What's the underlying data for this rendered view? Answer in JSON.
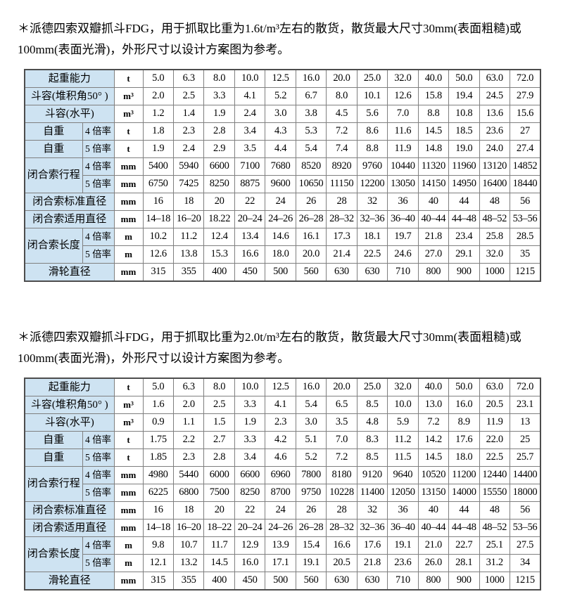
{
  "colors": {
    "header_cell_bg": "#cee3f2",
    "grid_border": "#7f7f7f",
    "outer_border": "#4d4d4d",
    "text": "#000000",
    "page_bg": "#ffffff"
  },
  "paragraphs": [
    "＊派德四索双瓣抓斗FDG，用于抓取比重为1.6t/m³左右的散货，散货最大尺寸30mm(表面粗糙)或100mm(表面光滑)，外形尺寸以设计方案图为参考。",
    "＊派德四索双瓣抓斗FDG，用于抓取比重为2.0t/m³左右的散货，散货最大尺寸30mm(表面粗糙)或100mm(表面光滑)，外形尺寸以设计方案图为参考。"
  ],
  "tables": [
    {
      "name": "spec-table-density-1.6",
      "rows": [
        {
          "label": "起重能力",
          "sub": null,
          "unit": "t",
          "values": [
            "5.0",
            "6.3",
            "8.0",
            "10.0",
            "12.5",
            "16.0",
            "20.0",
            "25.0",
            "32.0",
            "40.0",
            "50.0",
            "63.0",
            "72.0"
          ]
        },
        {
          "label": "斗容(堆积角50° )",
          "sub": null,
          "unit": "m³",
          "values": [
            "2.0",
            "2.5",
            "3.3",
            "4.1",
            "5.2",
            "6.7",
            "8.0",
            "10.1",
            "12.6",
            "15.8",
            "19.4",
            "24.5",
            "27.9"
          ]
        },
        {
          "label": "斗容(水平)",
          "sub": null,
          "unit": "m³",
          "values": [
            "1.2",
            "1.4",
            "1.9",
            "2.4",
            "3.0",
            "3.8",
            "4.5",
            "5.6",
            "7.0",
            "8.8",
            "10.8",
            "13.6",
            "15.6"
          ]
        },
        {
          "label": "自重",
          "sub": "4 倍率",
          "unit": "t",
          "values": [
            "1.8",
            "2.3",
            "2.8",
            "3.4",
            "4.3",
            "5.3",
            "7.2",
            "8.6",
            "11.6",
            "14.5",
            "18.5",
            "23.6",
            "27"
          ]
        },
        {
          "label": "自重",
          "sub": "5 倍率",
          "unit": "t",
          "values": [
            "1.9",
            "2.4",
            "2.9",
            "3.5",
            "4.4",
            "5.4",
            "7.4",
            "8.8",
            "11.9",
            "14.8",
            "19.0",
            "24.0",
            "27.4"
          ]
        },
        {
          "label": "闭合索行程",
          "labelRowspan": 2,
          "sub": "4 倍率",
          "unit": "mm",
          "values": [
            "5400",
            "5940",
            "6600",
            "7100",
            "7680",
            "8520",
            "8920",
            "9760",
            "10440",
            "11320",
            "11960",
            "13120",
            "14852"
          ]
        },
        {
          "label": null,
          "sub": "5 倍率",
          "unit": "mm",
          "values": [
            "6750",
            "7425",
            "8250",
            "8875",
            "9600",
            "10650",
            "11150",
            "12200",
            "13050",
            "14150",
            "14950",
            "16400",
            "18440"
          ]
        },
        {
          "label": "闭合索标准直径",
          "sub": null,
          "unit": "mm",
          "values": [
            "16",
            "18",
            "20",
            "22",
            "24",
            "26",
            "28",
            "32",
            "36",
            "40",
            "44",
            "48",
            "56"
          ]
        },
        {
          "label": "闭合索适用直径",
          "sub": null,
          "unit": "mm",
          "values": [
            "14–18",
            "16–20",
            "18.22",
            "20–24",
            "24–26",
            "26–28",
            "28–32",
            "32–36",
            "36–40",
            "40–44",
            "44–48",
            "48–52",
            "53–56"
          ]
        },
        {
          "label": "闭合索长度",
          "labelRowspan": 2,
          "sub": "4 倍率",
          "unit": "m",
          "values": [
            "10.2",
            "11.2",
            "12.4",
            "13.4",
            "14.6",
            "16.1",
            "17.3",
            "18.1",
            "19.7",
            "21.8",
            "23.4",
            "25.8",
            "28.5"
          ]
        },
        {
          "label": null,
          "sub": "5 倍率",
          "unit": "m",
          "values": [
            "12.6",
            "13.8",
            "15.3",
            "16.6",
            "18.0",
            "20.0",
            "21.4",
            "22.5",
            "24.6",
            "27.0",
            "29.1",
            "32.0",
            "35"
          ]
        },
        {
          "label": "滑轮直径",
          "sub": null,
          "unit": "mm",
          "values": [
            "315",
            "355",
            "400",
            "450",
            "500",
            "560",
            "630",
            "630",
            "710",
            "800",
            "900",
            "1000",
            "1215"
          ]
        }
      ]
    },
    {
      "name": "spec-table-density-2.0",
      "rows": [
        {
          "label": "起重能力",
          "sub": null,
          "unit": "t",
          "values": [
            "5.0",
            "6.3",
            "8.0",
            "10.0",
            "12.5",
            "16.0",
            "20.0",
            "25.0",
            "32.0",
            "40.0",
            "50.0",
            "63.0",
            "72.0"
          ]
        },
        {
          "label": "斗容(堆积角50° )",
          "sub": null,
          "unit": "m³",
          "values": [
            "1.6",
            "2.0",
            "2.5",
            "3.3",
            "4.1",
            "5.4",
            "6.5",
            "8.5",
            "10.0",
            "13.0",
            "16.0",
            "20.5",
            "23.1"
          ]
        },
        {
          "label": "斗容(水平)",
          "sub": null,
          "unit": "m³",
          "values": [
            "0.9",
            "1.1",
            "1.5",
            "1.9",
            "2.3",
            "3.0",
            "3.5",
            "4.8",
            "5.9",
            "7.2",
            "8.9",
            "11.9",
            "13"
          ]
        },
        {
          "label": "自重",
          "sub": "4 倍率",
          "unit": "t",
          "values": [
            "1.75",
            "2.2",
            "2.7",
            "3.3",
            "4.2",
            "5.1",
            "7.0",
            "8.3",
            "11.2",
            "14.2",
            "17.6",
            "22.0",
            "25"
          ]
        },
        {
          "label": "自重",
          "sub": "5 倍率",
          "unit": "t",
          "values": [
            "1.85",
            "2.3",
            "2.8",
            "3.4",
            "4.6",
            "5.2",
            "7.2",
            "8.5",
            "11.5",
            "14.5",
            "18.0",
            "22.5",
            "25.7"
          ]
        },
        {
          "label": "闭合索行程",
          "labelRowspan": 2,
          "sub": "4 倍率",
          "unit": "mm",
          "values": [
            "4980",
            "5440",
            "6000",
            "6600",
            "6960",
            "7800",
            "8180",
            "9120",
            "9640",
            "10520",
            "11200",
            "12440",
            "14400"
          ]
        },
        {
          "label": null,
          "sub": "5 倍率",
          "unit": "mm",
          "values": [
            "6225",
            "6800",
            "7500",
            "8250",
            "8700",
            "9750",
            "10228",
            "11400",
            "12050",
            "13150",
            "14000",
            "15550",
            "18000"
          ]
        },
        {
          "label": "闭合索标准直径",
          "sub": null,
          "unit": "mm",
          "values": [
            "16",
            "18",
            "20",
            "22",
            "24",
            "26",
            "28",
            "32",
            "36",
            "40",
            "44",
            "48",
            "56"
          ]
        },
        {
          "label": "闭合索适用直径",
          "sub": null,
          "unit": "mm",
          "values": [
            "14–18",
            "16–20",
            "18–22",
            "20–24",
            "24–26",
            "26–28",
            "28–32",
            "32–36",
            "36–40",
            "40–44",
            "44–48",
            "48–52",
            "53–56"
          ]
        },
        {
          "label": "闭合索长度",
          "labelRowspan": 2,
          "sub": "4 倍率",
          "unit": "m",
          "values": [
            "9.8",
            "10.7",
            "11.7",
            "12.9",
            "13.9",
            "15.4",
            "16.6",
            "17.6",
            "19.1",
            "21.0",
            "22.7",
            "25.1",
            "27.5"
          ]
        },
        {
          "label": null,
          "sub": "5 倍率",
          "unit": "m",
          "values": [
            "12.1",
            "13.2",
            "14.5",
            "16.0",
            "17.1",
            "19.1",
            "20.5",
            "21.8",
            "23.6",
            "26.0",
            "28.1",
            "31.2",
            "34"
          ]
        },
        {
          "label": "滑轮直径",
          "sub": null,
          "unit": "mm",
          "values": [
            "315",
            "355",
            "400",
            "450",
            "500",
            "560",
            "630",
            "630",
            "710",
            "800",
            "900",
            "1000",
            "1215"
          ]
        }
      ]
    }
  ]
}
